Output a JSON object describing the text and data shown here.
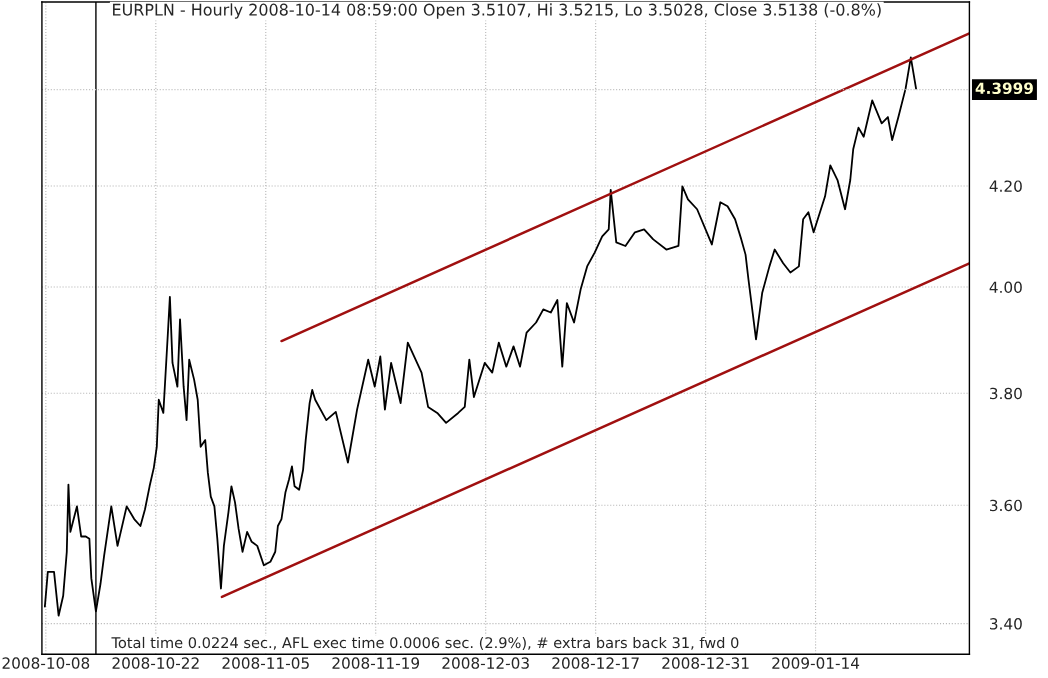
{
  "chart_data": {
    "type": "line",
    "title": "EURPLN - Hourly 2008-10-14 08:59:00 Open 3.5107, Hi 3.5215, Lo 3.5028, Close 3.5138 (-0.8%)",
    "log": "y",
    "grid": true,
    "line_style": "solid",
    "marker": "none",
    "xlim": [
      "2008-10-07T12:00",
      "2009-02-02T14:00"
    ],
    "xticks": [
      "2008-10-08",
      "2008-10-22",
      "2008-11-05",
      "2008-11-19",
      "2008-12-03",
      "2008-12-17",
      "2008-12-31",
      "2009-01-14"
    ],
    "ylim": [
      3.35,
      4.59
    ],
    "yticks": [
      {
        "value": 3.4,
        "label": "3.40"
      },
      {
        "value": 3.6,
        "label": "3.60"
      },
      {
        "value": 3.8,
        "label": "3.80"
      },
      {
        "value": 4.0,
        "label": "4.00"
      },
      {
        "value": 4.2,
        "label": "4.20"
      }
    ],
    "ref_lines": [
      {
        "axis": "x",
        "value": "2008-10-14T08:59",
        "color": "#000000",
        "line_style": "solid"
      },
      {
        "axis": "y",
        "value": 4.3999,
        "label": "4.3999",
        "color": "#c0c0c0",
        "line_style": "dotted"
      }
    ],
    "annotations": [
      "Total time 0.0224 sec., AFL exec time 0.0006 sec. (2.9%), # extra bars back 31, fwd 0"
    ],
    "series": [
      {
        "color": "#000000",
        "x": [
          "2008-10-07T21:00",
          "2008-10-08T06:00",
          "2008-10-09T01:00",
          "2008-10-09T15:00",
          "2008-10-10T05:00",
          "2008-10-10T16:00",
          "2008-10-10T21:00",
          "2008-10-11T03:00",
          "2008-10-11T23:00",
          "2008-10-12T12:00",
          "2008-10-13T02:00",
          "2008-10-13T13:00",
          "2008-10-13T19:00",
          "2008-10-14T09:00",
          "2008-10-14T23:00",
          "2008-10-15T10:00",
          "2008-10-16T08:00",
          "2008-10-17T03:00",
          "2008-10-18T07:00",
          "2008-10-19T06:00",
          "2008-10-20T01:00",
          "2008-10-20T15:00",
          "2008-10-21T05:00",
          "2008-10-21T18:00",
          "2008-10-22T03:00",
          "2008-10-22T09:00",
          "2008-10-22T23:00",
          "2008-10-23T13:00",
          "2008-10-23T19:00",
          "2008-10-24T03:00",
          "2008-10-24T18:00",
          "2008-10-25T02:00",
          "2008-10-25T13:00",
          "2008-10-25T22:00",
          "2008-10-26T06:00",
          "2008-10-26T21:00",
          "2008-10-27T08:00",
          "2008-10-27T17:00",
          "2008-10-28T07:00",
          "2008-10-28T15:00",
          "2008-10-29T00:00",
          "2008-10-29T11:00",
          "2008-10-29T20:00",
          "2008-10-30T07:00",
          "2008-10-30T16:00",
          "2008-10-31T06:00",
          "2008-10-31T15:00",
          "2008-11-01T02:00",
          "2008-11-01T13:00",
          "2008-11-02T01:00",
          "2008-11-02T15:00",
          "2008-11-03T05:00",
          "2008-11-03T22:00",
          "2008-11-04T18:00",
          "2008-11-05T14:00",
          "2008-11-06T05:00",
          "2008-11-06T13:00",
          "2008-11-07T00:00",
          "2008-11-07T12:00",
          "2008-11-07T23:00",
          "2008-11-08T08:00",
          "2008-11-08T16:00",
          "2008-11-09T06:00",
          "2008-11-09T18:00",
          "2008-11-10T02:00",
          "2008-11-10T14:00",
          "2008-11-10T22:00",
          "2008-11-11T07:00",
          "2008-11-12T17:00",
          "2008-11-13T22:00",
          "2008-11-15T11:00",
          "2008-11-16T15:00",
          "2008-11-18T01:00",
          "2008-11-18T21:00",
          "2008-11-19T14:00",
          "2008-11-20T04:00",
          "2008-11-20T23:00",
          "2008-11-22T04:00",
          "2008-11-23T02:00",
          "2008-11-24T20:00",
          "2008-11-25T16:00",
          "2008-11-26T20:00",
          "2008-11-27T23:00",
          "2008-11-29T12:00",
          "2008-11-30T08:00",
          "2008-11-30T22:00",
          "2008-12-01T12:00",
          "2008-12-02T21:00",
          "2008-12-03T20:00",
          "2008-12-04T16:00",
          "2008-12-05T15:00",
          "2008-12-06T13:00",
          "2008-12-07T09:00",
          "2008-12-08T05:00",
          "2008-12-09T10:00",
          "2008-12-10T08:00",
          "2008-12-11T07:00",
          "2008-12-12T03:00",
          "2008-12-12T18:00",
          "2008-12-13T08:00",
          "2008-12-14T06:00",
          "2008-12-15T02:00",
          "2008-12-15T22:00",
          "2008-12-16T21:00",
          "2008-12-17T20:00",
          "2008-12-18T16:00",
          "2008-12-18T22:00",
          "2008-12-19T15:00",
          "2008-12-20T19:00",
          "2008-12-22T00:00",
          "2008-12-23T04:00",
          "2008-12-24T08:00",
          "2008-12-26T00:00",
          "2008-12-27T13:00",
          "2008-12-28T01:00",
          "2008-12-28T18:00",
          "2008-12-29T22:00",
          "2008-12-31T19:00",
          "2009-01-01T21:00",
          "2009-01-02T19:00",
          "2009-01-03T18:00",
          "2009-01-04T13:00",
          "2009-01-05T02:00",
          "2009-01-05T11:00",
          "2009-01-06T10:00",
          "2009-01-07T05:00",
          "2009-01-08T03:00",
          "2009-01-08T19:00",
          "2009-01-09T21:00",
          "2009-01-10T19:00",
          "2009-01-11T21:00",
          "2009-01-12T10:00",
          "2009-01-13T02:00",
          "2009-01-13T18:00",
          "2009-01-14T10:00",
          "2009-01-15T05:00",
          "2009-01-15T21:00",
          "2009-01-16T19:00",
          "2009-01-17T18:00",
          "2009-01-18T10:00",
          "2009-01-18T19:00",
          "2009-01-19T11:00",
          "2009-01-20T03:00",
          "2009-01-21T05:00",
          "2009-01-22T10:00",
          "2009-01-23T05:00",
          "2009-01-23T18:00",
          "2009-01-24T13:00",
          "2009-01-25T11:00",
          "2009-01-26T03:00",
          "2009-01-26T19:00"
        ],
        "values": [
          3.428,
          3.486,
          3.486,
          3.413,
          3.446,
          3.52,
          3.636,
          3.554,
          3.598,
          3.546,
          3.546,
          3.542,
          3.475,
          3.42,
          3.466,
          3.513,
          3.598,
          3.53,
          3.598,
          3.576,
          3.564,
          3.593,
          3.633,
          3.666,
          3.703,
          3.788,
          3.764,
          3.913,
          3.981,
          3.856,
          3.812,
          3.938,
          3.812,
          3.751,
          3.862,
          3.825,
          3.788,
          3.703,
          3.715,
          3.657,
          3.615,
          3.598,
          3.542,
          3.458,
          3.53,
          3.588,
          3.633,
          3.605,
          3.559,
          3.52,
          3.554,
          3.537,
          3.53,
          3.497,
          3.503,
          3.52,
          3.564,
          3.576,
          3.622,
          3.645,
          3.668,
          3.633,
          3.627,
          3.662,
          3.715,
          3.782,
          3.806,
          3.788,
          3.751,
          3.766,
          3.675,
          3.77,
          3.862,
          3.812,
          3.868,
          3.77,
          3.856,
          3.782,
          3.894,
          3.838,
          3.775,
          3.764,
          3.746,
          3.764,
          3.775,
          3.862,
          3.793,
          3.856,
          3.838,
          3.894,
          3.849,
          3.887,
          3.849,
          3.913,
          3.932,
          3.957,
          3.951,
          3.975,
          3.849,
          3.969,
          3.932,
          3.995,
          4.04,
          4.067,
          4.099,
          4.113,
          4.192,
          4.087,
          4.08,
          4.107,
          4.113,
          4.093,
          4.073,
          4.08,
          4.199,
          4.173,
          4.153,
          4.083,
          4.167,
          4.159,
          4.133,
          4.093,
          4.063,
          4.014,
          3.9,
          3.989,
          4.04,
          4.073,
          4.046,
          4.028,
          4.04,
          4.133,
          4.147,
          4.107,
          4.14,
          4.179,
          4.242,
          4.212,
          4.153,
          4.212,
          4.275,
          4.32,
          4.301,
          4.377,
          4.329,
          4.342,
          4.294,
          4.342,
          4.402,
          4.469,
          4.402
        ]
      },
      {
        "color": "#a01010",
        "x": [
          "2008-11-07T00:00",
          "2009-02-02T14:00"
        ],
        "values": [
          3.897,
          4.521
        ]
      },
      {
        "color": "#a01010",
        "x": [
          "2008-10-30T10:00",
          "2009-02-02T14:00"
        ],
        "values": [
          3.444,
          4.046
        ]
      }
    ]
  }
}
